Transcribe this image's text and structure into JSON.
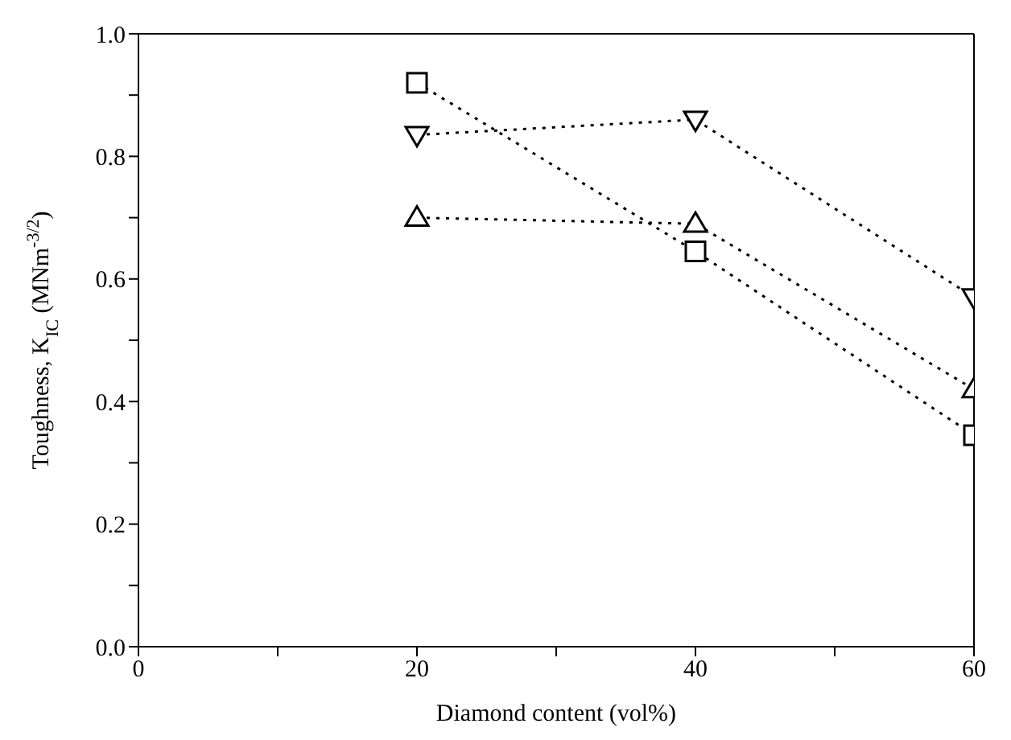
{
  "chart_data": {
    "type": "line",
    "xlabel": "Diamond content (vol%)",
    "ylabel": "Toughness, K$_{IC}$ (MNm$^{-3/2}$)",
    "x": [
      20,
      40,
      60
    ],
    "series": [
      {
        "color": "#000000",
        "values": [
          0.92,
          0.645,
          0.345
        ],
        "marker": "square"
      },
      {
        "color": "#000000",
        "values": [
          0.7,
          0.69,
          0.42
        ],
        "marker": "triangle"
      },
      {
        "color": "#000000",
        "values": [
          0.835,
          0.86,
          0.57
        ],
        "marker": "triangle-down"
      }
    ],
    "line_style": "dotted",
    "grid": false,
    "legend": false,
    "xlim": [
      0,
      60
    ],
    "xticks": [
      0,
      {
        "value": 10,
        "label": null
      },
      20,
      {
        "value": 30,
        "label": null
      },
      40,
      {
        "value": 50,
        "label": null
      },
      60
    ],
    "ylim": [
      0,
      1
    ],
    "yticks": [
      "0.0",
      {
        "value": 0.1,
        "label": null
      },
      0.2,
      {
        "value": 0.3,
        "label": null
      },
      0.4,
      {
        "value": 0.5,
        "label": null
      },
      0.6,
      {
        "value": 0.7,
        "label": null
      },
      0.8,
      {
        "value": 0.9,
        "label": null
      },
      "1.0"
    ]
  }
}
